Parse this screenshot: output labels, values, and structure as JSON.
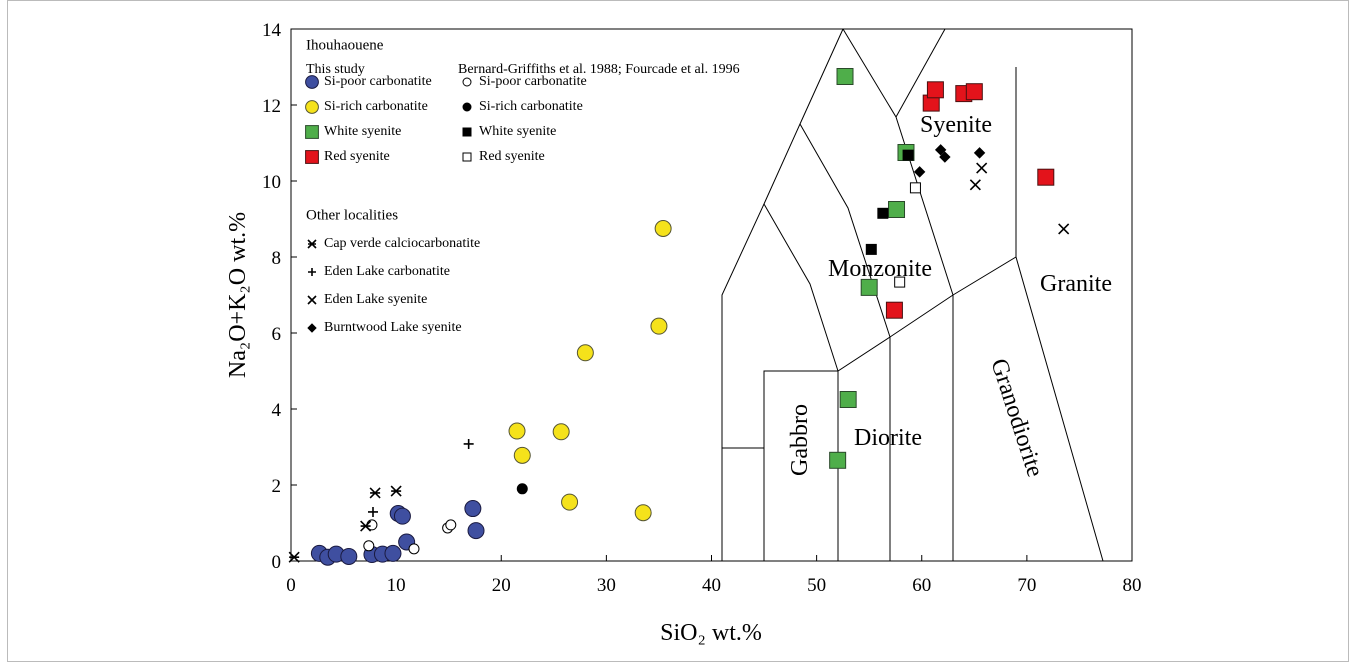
{
  "chart_data": {
    "type": "scatter",
    "xlabel": "SiO₂ wt.%",
    "ylabel": "Na₂O+K₂O wt.%",
    "xlim": [
      0,
      80
    ],
    "ylim": [
      0,
      14
    ],
    "xticks": [
      0,
      10,
      20,
      30,
      40,
      50,
      60,
      70,
      80
    ],
    "yticks": [
      0,
      2,
      4,
      6,
      8,
      10,
      12,
      14
    ],
    "legend_headings": [
      "Ihouhaouene",
      "This study",
      "Bernard-Griffiths et al. 1988; Fourcade et al. 1996",
      "Other localities"
    ],
    "annotations": [
      "Syenite",
      "Monzonite",
      "Granite",
      "Gabbro",
      "Diorite",
      "Granodiorite"
    ],
    "series": [
      {
        "name": "Si-poor carbonatite",
        "marker": "circle",
        "color": "#3f4fa0",
        "edgecolor": "#1a1a40",
        "marker_size": 8,
        "x": [
          2.7,
          3.5,
          4.3,
          5.5,
          7.7,
          8.7,
          9.7,
          10.2,
          10.6,
          11,
          17.3,
          17.6
        ],
        "y": [
          0.2,
          0.1,
          0.18,
          0.12,
          0.17,
          0.18,
          0.2,
          1.25,
          1.18,
          0.5,
          1.38,
          0.8
        ]
      },
      {
        "name": "Si-rich carbonatite",
        "marker": "circle",
        "color": "#f5e21b",
        "edgecolor": "#555533",
        "marker_size": 8,
        "x": [
          21.5,
          22,
          25.7,
          26.5,
          28,
          33.5,
          35,
          35.4
        ],
        "y": [
          3.42,
          2.78,
          3.4,
          1.55,
          5.48,
          1.27,
          6.18,
          8.75
        ]
      },
      {
        "name": "White syenite",
        "marker": "square",
        "color": "#4fae4a",
        "edgecolor": "#2a4a2a",
        "marker_size": 8,
        "x": [
          52.7,
          58.5,
          57.6,
          55,
          53,
          52
        ],
        "y": [
          12.75,
          10.75,
          9.25,
          7.2,
          4.25,
          2.65
        ]
      },
      {
        "name": "Red syenite",
        "marker": "square",
        "color": "#e3131b",
        "edgecolor": "#4a1010",
        "marker_size": 8,
        "x": [
          60.9,
          61.3,
          64,
          65,
          71.8,
          57.4
        ],
        "y": [
          12.05,
          12.4,
          12.3,
          12.35,
          10.1,
          6.6
        ]
      },
      {
        "name": "Si-poor carbonatite",
        "marker": "circle",
        "color": "#ffffff",
        "edgecolor": "#000000",
        "marker_size": 5,
        "x": [
          7.7,
          7.4,
          11.7,
          14.9,
          15.2
        ],
        "y": [
          0.95,
          0.4,
          0.32,
          0.87,
          0.95
        ]
      },
      {
        "name": "Si-rich carbonatite",
        "marker": "circle",
        "color": "#000000",
        "edgecolor": "#000000",
        "marker_size": 5,
        "x": [
          22.0
        ],
        "y": [
          1.9
        ]
      },
      {
        "name": "White syenite",
        "marker": "square",
        "color": "#000000",
        "edgecolor": "#000000",
        "marker_size": 5,
        "x": [
          58.7,
          56.3,
          55.2
        ],
        "y": [
          10.68,
          9.15,
          8.2
        ]
      },
      {
        "name": "Red syenite",
        "marker": "square",
        "color": "#ffffff",
        "edgecolor": "#000000",
        "marker_size": 5,
        "x": [
          59.4,
          57.9
        ],
        "y": [
          9.82,
          7.34
        ]
      },
      {
        "name": "Cap verde calciocarbonatite",
        "marker": "asterisk",
        "color": "#000000",
        "edgecolor": "#000000",
        "marker_size": 5,
        "x": [
          0.3,
          7.1,
          8.0,
          10.0
        ],
        "y": [
          0.1,
          0.92,
          1.79,
          1.84
        ]
      },
      {
        "name": "Eden Lake carbonatite",
        "marker": "plus",
        "color": "#000000",
        "edgecolor": "#000000",
        "marker_size": 5,
        "x": [
          7.8,
          16.9
        ],
        "y": [
          1.29,
          3.08
        ]
      },
      {
        "name": "Eden Lake syenite",
        "marker": "x",
        "color": "#000000",
        "edgecolor": "#000000",
        "marker_size": 5,
        "x": [
          65.1,
          65.7,
          73.5
        ],
        "y": [
          9.9,
          10.34,
          8.74
        ]
      },
      {
        "name": "Burntwood Lake syenite",
        "marker": "diamond",
        "color": "#000000",
        "edgecolor": "#000000",
        "marker_size": 5,
        "x": [
          59.8,
          61.8,
          62.2,
          65.5
        ],
        "y": [
          10.24,
          10.82,
          10.63,
          10.74
        ]
      }
    ]
  }
}
